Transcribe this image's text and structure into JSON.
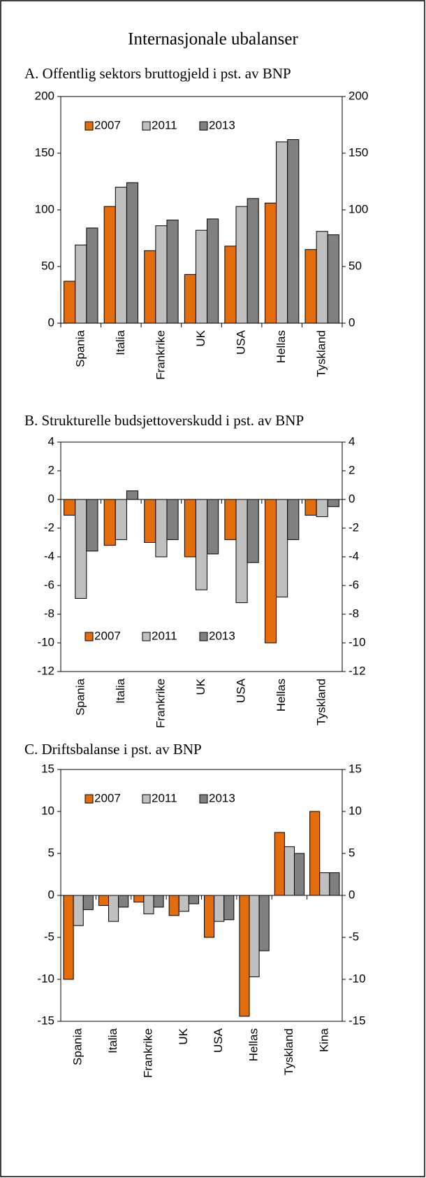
{
  "title": "Internasjonale ubalanser",
  "chart_data": [
    {
      "type": "bar",
      "title": "A.  Offentlig sektors bruttogjeld i pst. av BNP",
      "categories": [
        "Spania",
        "Italia",
        "Frankrike",
        "UK",
        "USA",
        "Hellas",
        "Tyskland"
      ],
      "series": [
        {
          "name": "2007",
          "color": "#e46c0a",
          "values": [
            37,
            103,
            64,
            43,
            68,
            106,
            65
          ]
        },
        {
          "name": "2011",
          "color": "#c0c0c0",
          "values": [
            69,
            120,
            86,
            82,
            103,
            160,
            81
          ]
        },
        {
          "name": "2013",
          "color": "#808080",
          "values": [
            84,
            124,
            91,
            92,
            110,
            162,
            78
          ]
        }
      ],
      "ylim": [
        0,
        200
      ],
      "yticks": [
        0,
        50,
        100,
        150,
        200
      ],
      "legend": "upper left"
    },
    {
      "type": "bar",
      "title": "B.  Strukturelle budsjettoverskudd i pst. av BNP",
      "categories": [
        "Spania",
        "Italia",
        "Frankrike",
        "UK",
        "USA",
        "Hellas",
        "Tyskland"
      ],
      "series": [
        {
          "name": "2007",
          "color": "#e46c0a",
          "values": [
            -1.1,
            -3.2,
            -3.0,
            -4.0,
            -2.8,
            -10.0,
            -1.1
          ]
        },
        {
          "name": "2011",
          "color": "#c0c0c0",
          "values": [
            -6.9,
            -2.8,
            -4.0,
            -6.3,
            -7.2,
            -6.8,
            -1.2
          ]
        },
        {
          "name": "2013",
          "color": "#808080",
          "values": [
            -3.6,
            0.6,
            -2.8,
            -3.8,
            -4.4,
            -2.8,
            -0.5
          ]
        }
      ],
      "ylim": [
        -12,
        4
      ],
      "yticks": [
        -12,
        -10,
        -8,
        -6,
        -4,
        -2,
        0,
        2,
        4
      ],
      "legend": "lower left"
    },
    {
      "type": "bar",
      "title": "C.  Driftsbalanse i pst. av BNP",
      "categories": [
        "Spania",
        "Italia",
        "Frankrike",
        "UK",
        "USA",
        "Hellas",
        "Tyskland",
        "Kina"
      ],
      "series": [
        {
          "name": "2007",
          "color": "#e46c0a",
          "values": [
            -10.0,
            -1.2,
            -0.8,
            -2.4,
            -5.0,
            -14.4,
            7.5,
            10.0
          ]
        },
        {
          "name": "2011",
          "color": "#c0c0c0",
          "values": [
            -3.6,
            -3.1,
            -2.2,
            -1.9,
            -3.1,
            -9.7,
            5.8,
            2.7
          ]
        },
        {
          "name": "2013",
          "color": "#808080",
          "values": [
            -1.7,
            -1.4,
            -1.4,
            -1.0,
            -2.9,
            -6.6,
            5.0,
            2.7
          ]
        }
      ],
      "ylim": [
        -15,
        15
      ],
      "yticks": [
        -15,
        -10,
        -5,
        0,
        5,
        10,
        15
      ],
      "legend": "upper left"
    }
  ]
}
